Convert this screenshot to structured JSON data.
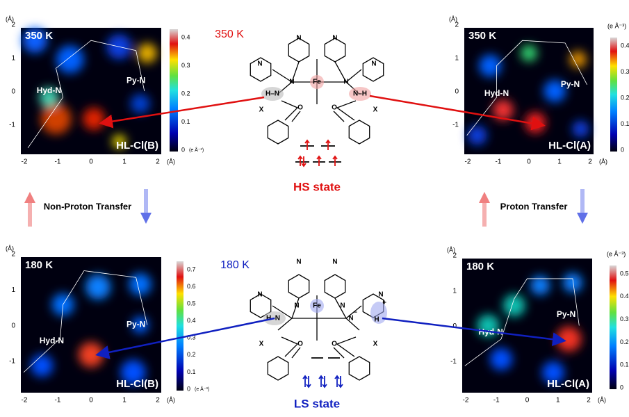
{
  "panels": [
    {
      "temperature": "350 K",
      "axis_unit": "(Å)",
      "xticks": [
        "-2",
        "-1",
        "0",
        "1",
        "2"
      ],
      "yticks": [
        "2",
        "1",
        "0",
        "-1"
      ],
      "hyd_label": "Hyd-N",
      "py_label": "Py-N",
      "compound": "HL-Cl(B)",
      "colorbar_ticks": [
        "0.4",
        "0.3",
        "0.2",
        "0.1",
        "0"
      ],
      "colorbar_unit": "(e Å⁻³)"
    },
    {
      "temperature": "350 K",
      "axis_unit": "(Å)",
      "xticks": [
        "-2",
        "-1",
        "0",
        "1",
        "2"
      ],
      "yticks": [
        "2",
        "1",
        "0",
        "-1"
      ],
      "hyd_label": "Hyd-N",
      "py_label": "Py-N",
      "compound": "HL-Cl(A)",
      "colorbar_ticks": [
        "0.4",
        "0.3",
        "0.2",
        "0.1",
        "0"
      ],
      "colorbar_unit": "(e Å⁻³)"
    },
    {
      "temperature": "180 K",
      "axis_unit": "(Å)",
      "xticks": [
        "-2",
        "-1",
        "0",
        "1",
        "2"
      ],
      "yticks": [
        "2",
        "1",
        "0",
        "-1"
      ],
      "hyd_label": "Hyd-N",
      "py_label": "Py-N",
      "compound": "HL-Cl(B)",
      "colorbar_ticks": [
        "0.7",
        "0.6",
        "0.5",
        "0.4",
        "0.3",
        "0.2",
        "0.1",
        "0"
      ],
      "colorbar_unit": "(e Å⁻³)"
    },
    {
      "temperature": "180 K",
      "axis_unit": "(Å)",
      "xticks": [
        "-2",
        "-1",
        "0",
        "1",
        "2"
      ],
      "yticks": [
        "2",
        "1",
        "0",
        "-1"
      ],
      "hyd_label": "Hyd-N",
      "py_label": "Py-N",
      "compound": "HL-Cl(A)",
      "colorbar_ticks": [
        "0.5",
        "0.4",
        "0.3",
        "0.2",
        "0.1",
        "0"
      ],
      "colorbar_unit": "(e Å⁻³)"
    }
  ],
  "center": {
    "top_temperature": "350 K",
    "top_state": "HS state",
    "bottom_temperature": "180 K",
    "bottom_state": "LS state",
    "top_atoms": [
      "N",
      "N",
      "N",
      "N",
      "N",
      "N",
      "Fe",
      "H–N",
      "N–H",
      "O",
      "O",
      "X",
      "X"
    ],
    "bottom_atoms": [
      "N",
      "N",
      "N",
      "N",
      "N",
      "N",
      "Fe",
      "H–N",
      "N",
      "−",
      "+",
      "H",
      "O",
      "O",
      "X",
      "X"
    ]
  },
  "transfers": {
    "left": "Non-Proton Transfer",
    "right": "Proton Transfer"
  }
}
